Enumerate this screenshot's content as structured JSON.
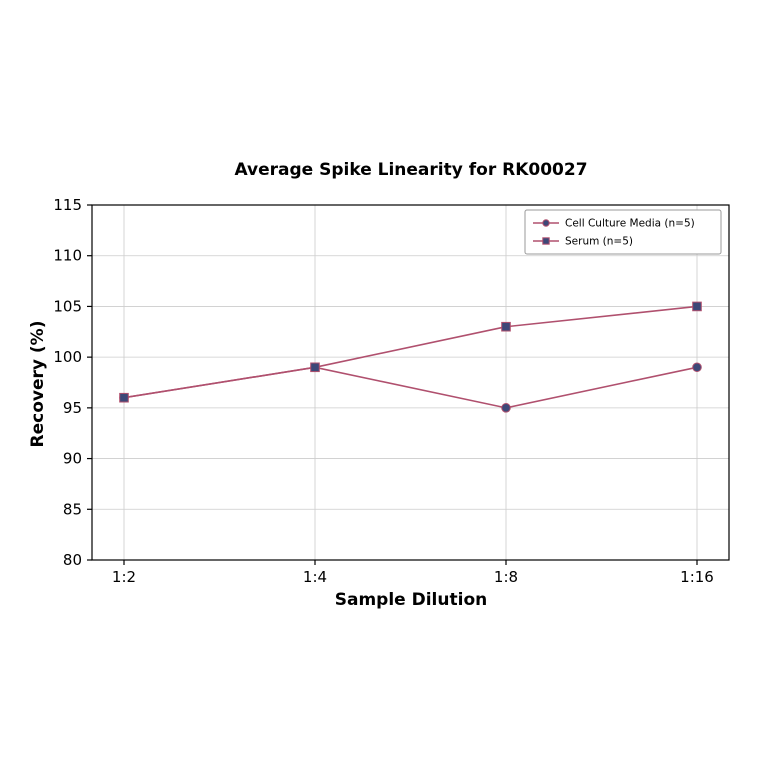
{
  "chart_data": {
    "type": "line",
    "title": "Average Spike Linearity for RK00027",
    "xlabel": "Sample Dilution",
    "ylabel": "Recovery (%)",
    "categories": [
      "1:2",
      "1:4",
      "1:8",
      "1:16"
    ],
    "series": [
      {
        "name": "Cell Culture Media (n=5)",
        "marker": "circle",
        "values": [
          96,
          99,
          95,
          99
        ]
      },
      {
        "name": "Serum (n=5)",
        "marker": "square",
        "values": [
          96,
          99,
          103,
          105
        ]
      }
    ],
    "ylim": [
      80,
      115
    ],
    "yticks": [
      80,
      85,
      90,
      95,
      100,
      105,
      110,
      115
    ],
    "grid": true,
    "legend_position": "upper right",
    "colors": {
      "line": "#b0506e",
      "marker_fill": "#3d4878",
      "grid": "#cccccc",
      "axis": "#000000",
      "legend_border": "#999999",
      "background": "#ffffff"
    }
  }
}
